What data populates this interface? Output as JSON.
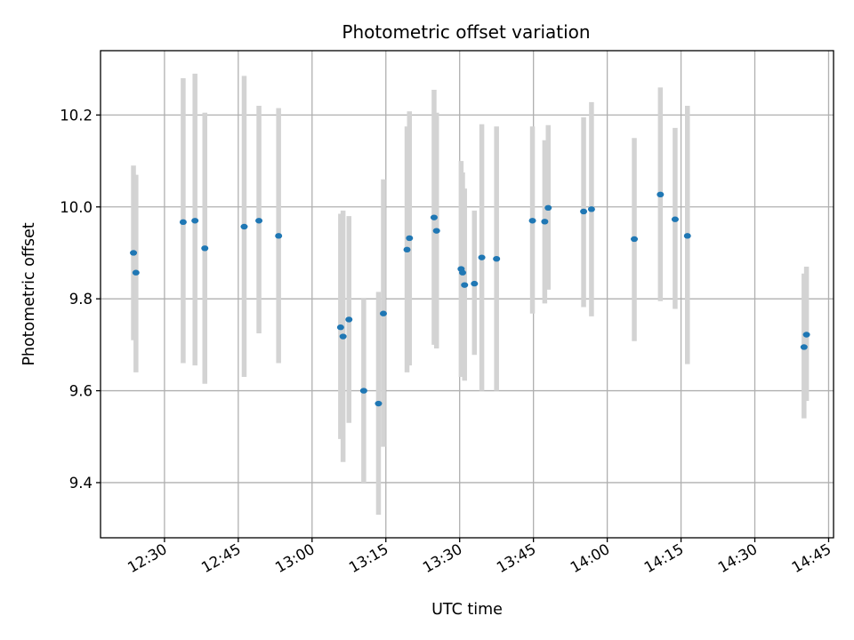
{
  "chart_data": {
    "type": "scatter",
    "title": "Photometric offset variation",
    "xlabel": "UTC time",
    "ylabel": "Photometric offset",
    "xlim": [
      "12:17",
      "14:46"
    ],
    "ylim": [
      9.28,
      10.34
    ],
    "grid": true,
    "x_ticks": [
      "12:30",
      "12:45",
      "13:00",
      "13:15",
      "13:30",
      "13:45",
      "14:00",
      "14:15",
      "14:30",
      "14:45"
    ],
    "y_ticks": [
      "9.4",
      "9.6",
      "9.8",
      "10.0",
      "10.2"
    ],
    "error_bar_color": "#d3d3d3",
    "marker_color": "#1f77b4",
    "series": [
      {
        "points": [
          {
            "t": "12:23.7",
            "y": 9.9,
            "lo": 9.71,
            "hi": 10.09
          },
          {
            "t": "12:24.2",
            "y": 9.857,
            "lo": 9.64,
            "hi": 10.07
          },
          {
            "t": "12:33.8",
            "y": 9.967,
            "lo": 9.66,
            "hi": 10.28
          },
          {
            "t": "12:36.2",
            "y": 9.97,
            "lo": 9.655,
            "hi": 10.29
          },
          {
            "t": "12:38.2",
            "y": 9.91,
            "lo": 9.615,
            "hi": 10.205
          },
          {
            "t": "12:46.2",
            "y": 9.957,
            "lo": 9.63,
            "hi": 10.285
          },
          {
            "t": "12:49.2",
            "y": 9.97,
            "lo": 9.725,
            "hi": 10.22
          },
          {
            "t": "12:53.2",
            "y": 9.937,
            "lo": 9.66,
            "hi": 10.215
          },
          {
            "t": "13:05.8",
            "y": 9.738,
            "lo": 9.495,
            "hi": 9.985
          },
          {
            "t": "13:06.3",
            "y": 9.718,
            "lo": 9.445,
            "hi": 9.992
          },
          {
            "t": "13:07.5",
            "y": 9.755,
            "lo": 9.53,
            "hi": 9.98
          },
          {
            "t": "13:10.5",
            "y": 9.6,
            "lo": 9.4,
            "hi": 9.8
          },
          {
            "t": "13:13.5",
            "y": 9.572,
            "lo": 9.33,
            "hi": 9.815
          },
          {
            "t": "13:14.5",
            "y": 9.768,
            "lo": 9.478,
            "hi": 10.06
          },
          {
            "t": "13:19.3",
            "y": 9.907,
            "lo": 9.64,
            "hi": 10.175
          },
          {
            "t": "13:19.8",
            "y": 9.932,
            "lo": 9.655,
            "hi": 10.208
          },
          {
            "t": "13:24.8",
            "y": 9.977,
            "lo": 9.7,
            "hi": 10.255
          },
          {
            "t": "13:25.3",
            "y": 9.948,
            "lo": 9.692,
            "hi": 10.205
          },
          {
            "t": "13:30.3",
            "y": 9.865,
            "lo": 9.63,
            "hi": 10.1
          },
          {
            "t": "13:30.6",
            "y": 9.857,
            "lo": 9.632,
            "hi": 10.075
          },
          {
            "t": "13:31.0",
            "y": 9.83,
            "lo": 9.622,
            "hi": 10.04
          },
          {
            "t": "13:33.0",
            "y": 9.833,
            "lo": 9.678,
            "hi": 9.992
          },
          {
            "t": "13:34.5",
            "y": 9.89,
            "lo": 9.6,
            "hi": 10.18
          },
          {
            "t": "13:37.5",
            "y": 9.887,
            "lo": 9.6,
            "hi": 10.175
          },
          {
            "t": "13:44.8",
            "y": 9.97,
            "lo": 9.768,
            "hi": 10.175
          },
          {
            "t": "13:47.3",
            "y": 9.968,
            "lo": 9.79,
            "hi": 10.145
          },
          {
            "t": "13:48.0",
            "y": 9.998,
            "lo": 9.82,
            "hi": 10.178
          },
          {
            "t": "13:55.2",
            "y": 9.99,
            "lo": 9.782,
            "hi": 10.195
          },
          {
            "t": "13:56.8",
            "y": 9.995,
            "lo": 9.762,
            "hi": 10.228
          },
          {
            "t": "14:05.5",
            "y": 9.93,
            "lo": 9.708,
            "hi": 10.15
          },
          {
            "t": "14:10.8",
            "y": 10.027,
            "lo": 9.795,
            "hi": 10.26
          },
          {
            "t": "14:13.8",
            "y": 9.973,
            "lo": 9.778,
            "hi": 10.172
          },
          {
            "t": "14:16.3",
            "y": 9.937,
            "lo": 9.658,
            "hi": 10.22
          },
          {
            "t": "14:40.0",
            "y": 9.695,
            "lo": 9.54,
            "hi": 9.855
          },
          {
            "t": "14:40.5",
            "y": 9.722,
            "lo": 9.578,
            "hi": 9.87
          }
        ]
      }
    ]
  }
}
